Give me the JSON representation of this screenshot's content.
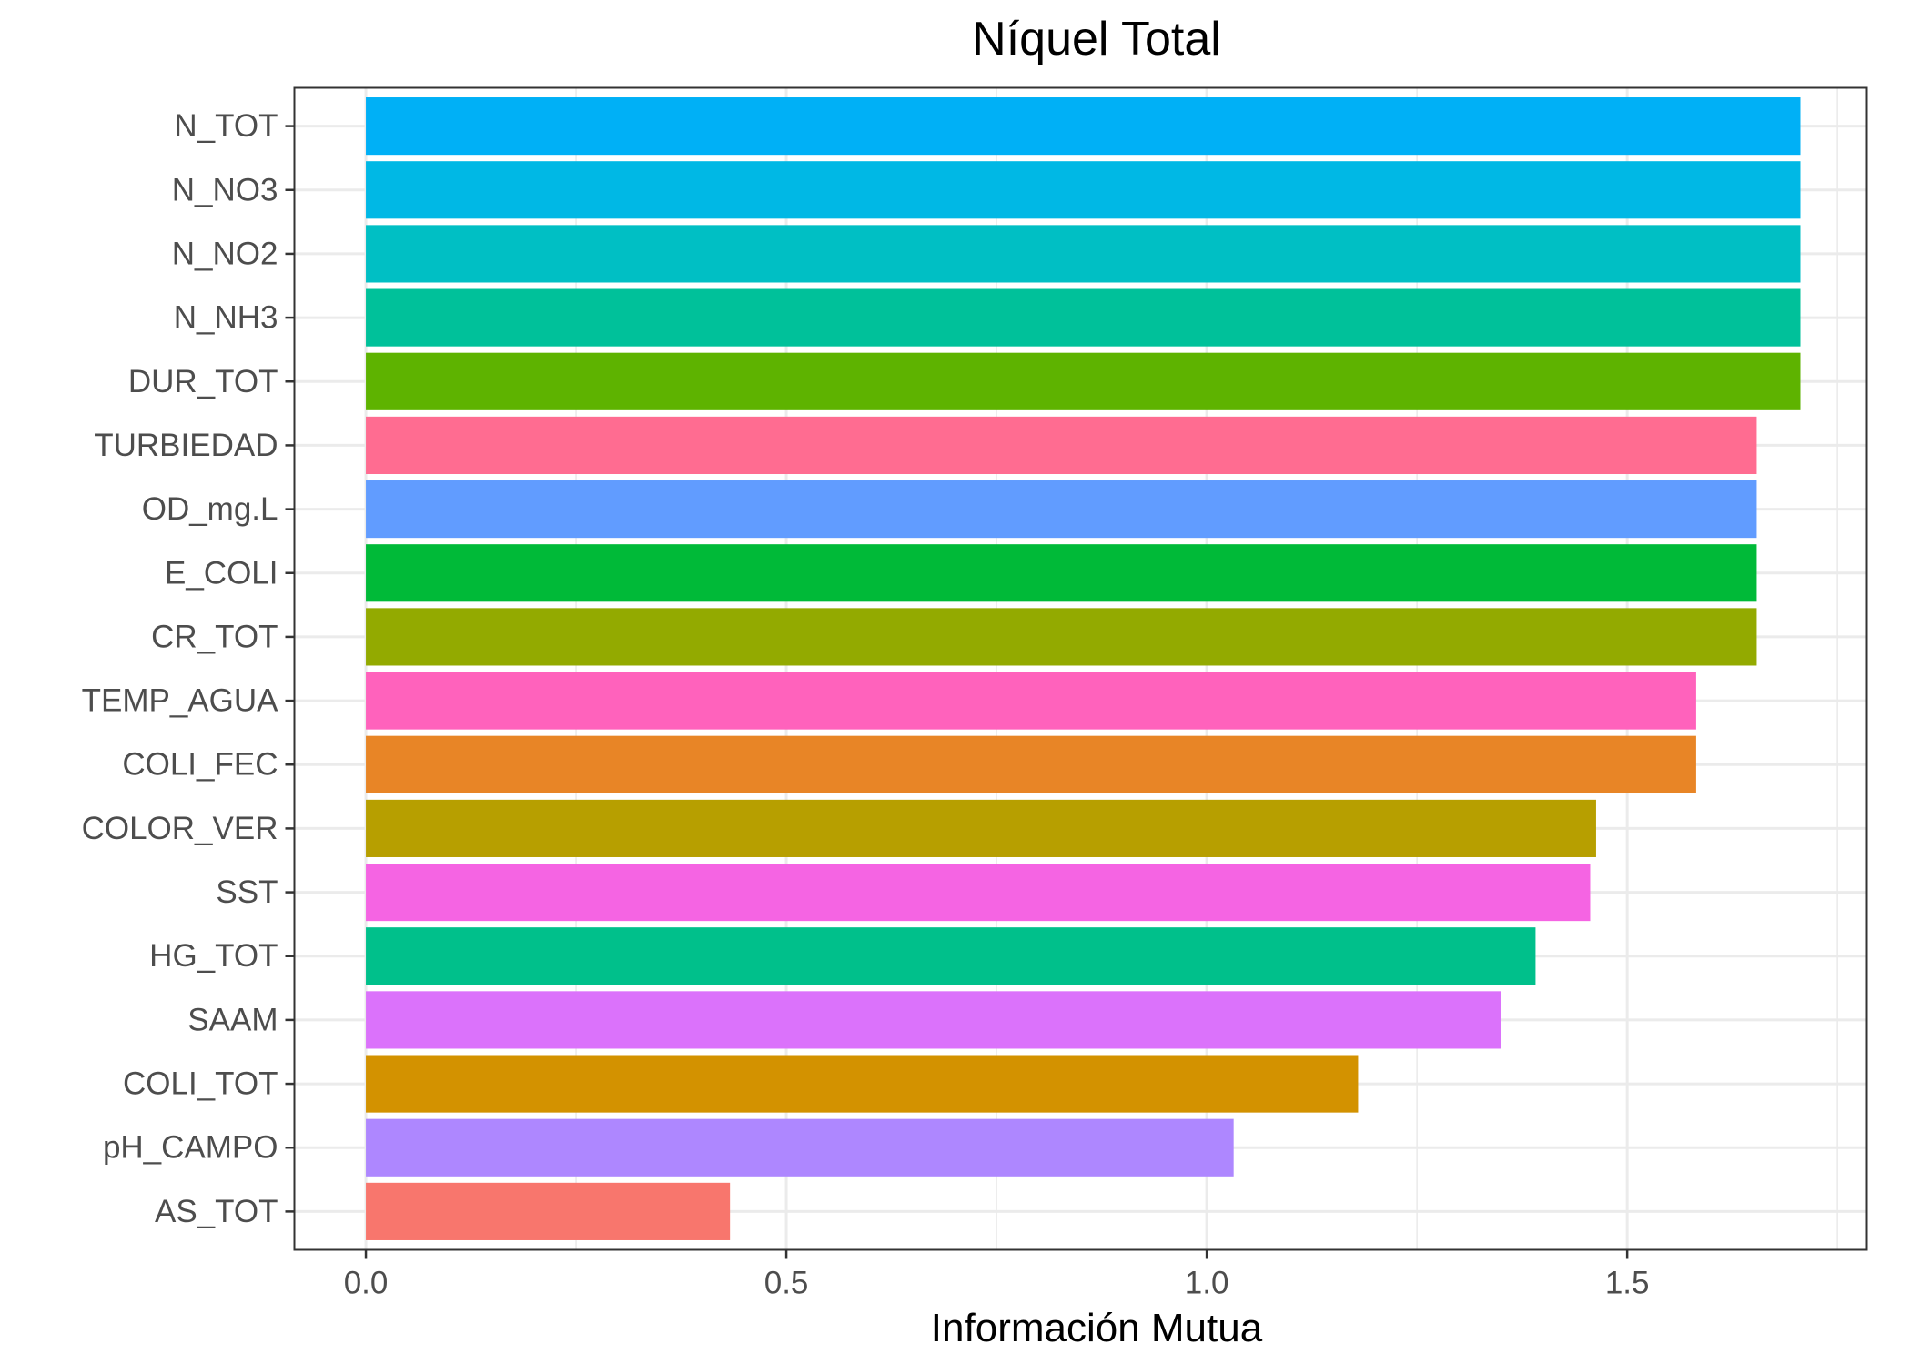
{
  "chart_data": {
    "type": "bar",
    "orientation": "horizontal",
    "title": "Níquel Total",
    "xlabel": "Información Mutua",
    "ylabel": "",
    "xlim": [
      -0.085,
      1.785
    ],
    "xticks": [
      0.0,
      0.5,
      1.0,
      1.5
    ],
    "xtick_labels": [
      "0.0",
      "0.5",
      "1.0",
      "1.5"
    ],
    "grid": true,
    "legend": "none",
    "categories": [
      "N_TOT",
      "N_NO3",
      "N_NO2",
      "N_NH3",
      "DUR_TOT",
      "TURBIEDAD",
      "OD_mg.L",
      "E_COLI",
      "CR_TOT",
      "TEMP_AGUA",
      "COLI_FEC",
      "COLOR_VER",
      "SST",
      "HG_TOT",
      "SAAM",
      "COLI_TOT",
      "pH_CAMPO",
      "AS_TOT"
    ],
    "values": [
      1.706,
      1.706,
      1.706,
      1.706,
      1.706,
      1.654,
      1.654,
      1.654,
      1.654,
      1.582,
      1.582,
      1.463,
      1.456,
      1.391,
      1.35,
      1.18,
      1.032,
      0.433
    ],
    "colors": [
      "#00B0F6",
      "#00B8E5",
      "#00BFC4",
      "#00C19A",
      "#5EB300",
      "#FF6C91",
      "#619CFF",
      "#00BA38",
      "#93AA00",
      "#FF62BC",
      "#E88526",
      "#B79F00",
      "#F564E3",
      "#00C08B",
      "#DB72FB",
      "#D39200",
      "#AE87FF",
      "#F8766D"
    ]
  }
}
